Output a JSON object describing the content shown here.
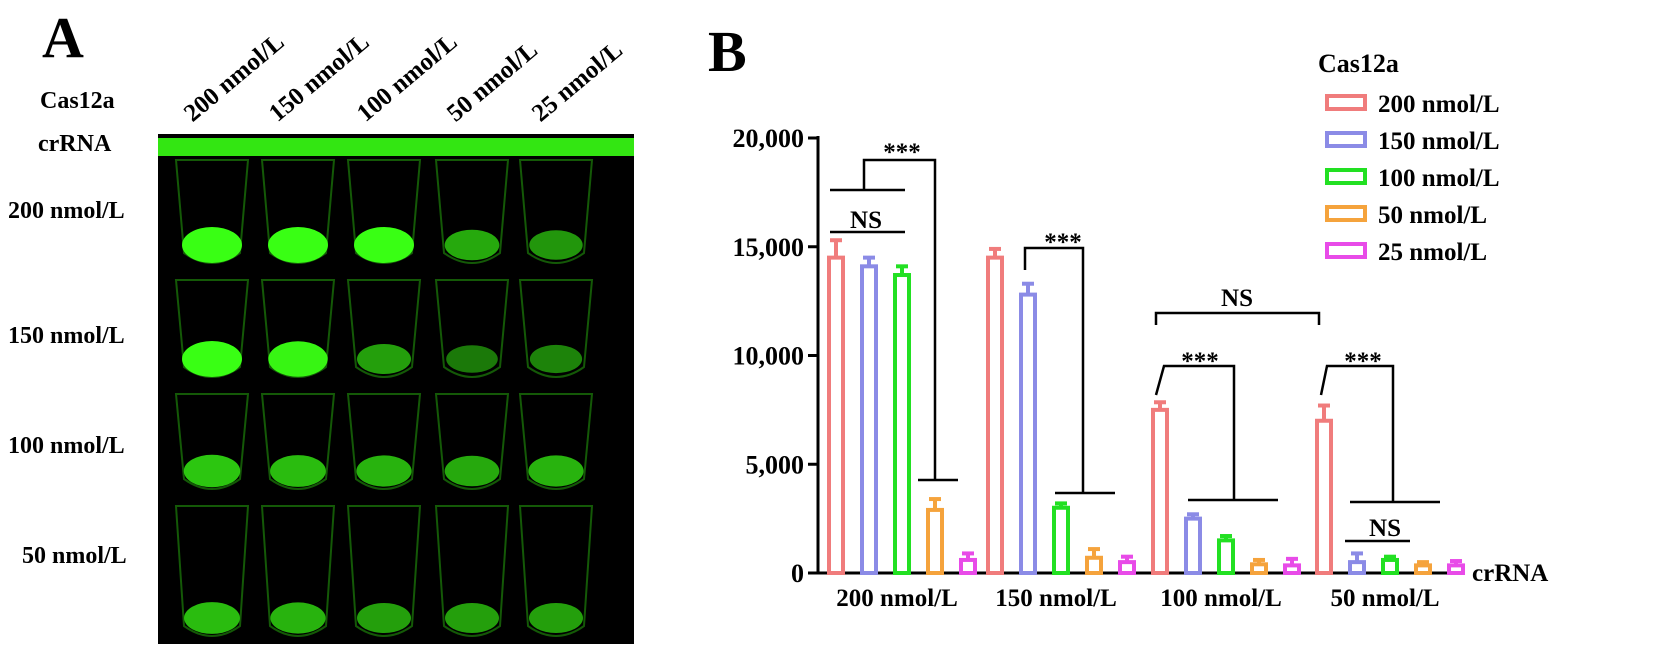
{
  "panel_a": {
    "letter": "A",
    "cas_label": "Cas12a",
    "crna_label": "crRNA",
    "columns": [
      "200 nmol/L",
      "150 nmol/L",
      "100 nmol/L",
      "50 nmol/L",
      "25 nmol/L"
    ],
    "rows": [
      "200 nmol/L",
      "150 nmol/L",
      "100 nmol/L",
      "50 nmol/L"
    ],
    "fluorescence_color": "#39ff14"
  },
  "panel_b": {
    "letter": "B"
  },
  "chart_data": {
    "type": "bar",
    "ylim": [
      0,
      20000
    ],
    "yticks": [
      "0",
      "5,000",
      "10,000",
      "15,000",
      "20,000"
    ],
    "ytick_values": [
      0,
      5000,
      10000,
      15000,
      20000
    ],
    "xlabel": "crRNA",
    "categories": [
      "200 nmol/L",
      "150 nmol/L",
      "100 nmol/L",
      "50 nmol/L"
    ],
    "legend_title": "Cas12a",
    "legend_position": "top-right",
    "series": [
      {
        "name": "200 nmol/L",
        "color": "#f07c7c",
        "values": [
          14500,
          14500,
          7500,
          7000
        ],
        "errors": [
          800,
          400,
          350,
          700
        ]
      },
      {
        "name": "150 nmol/L",
        "color": "#8b8be6",
        "values": [
          14100,
          12800,
          2500,
          500
        ],
        "errors": [
          400,
          500,
          200,
          400
        ]
      },
      {
        "name": "100 nmol/L",
        "color": "#22e022",
        "values": [
          13700,
          3000,
          1500,
          600
        ],
        "errors": [
          400,
          200,
          200,
          150
        ]
      },
      {
        "name": "50 nmol/L",
        "color": "#f5a33c",
        "values": [
          2900,
          700,
          400,
          350
        ],
        "errors": [
          500,
          400,
          200,
          150
        ]
      },
      {
        "name": "25 nmol/L",
        "color": "#e84be8",
        "values": [
          600,
          500,
          350,
          350
        ],
        "errors": [
          300,
          250,
          300,
          200
        ]
      }
    ],
    "annotations": {
      "sig_high": "***",
      "not_sig": "NS"
    }
  }
}
